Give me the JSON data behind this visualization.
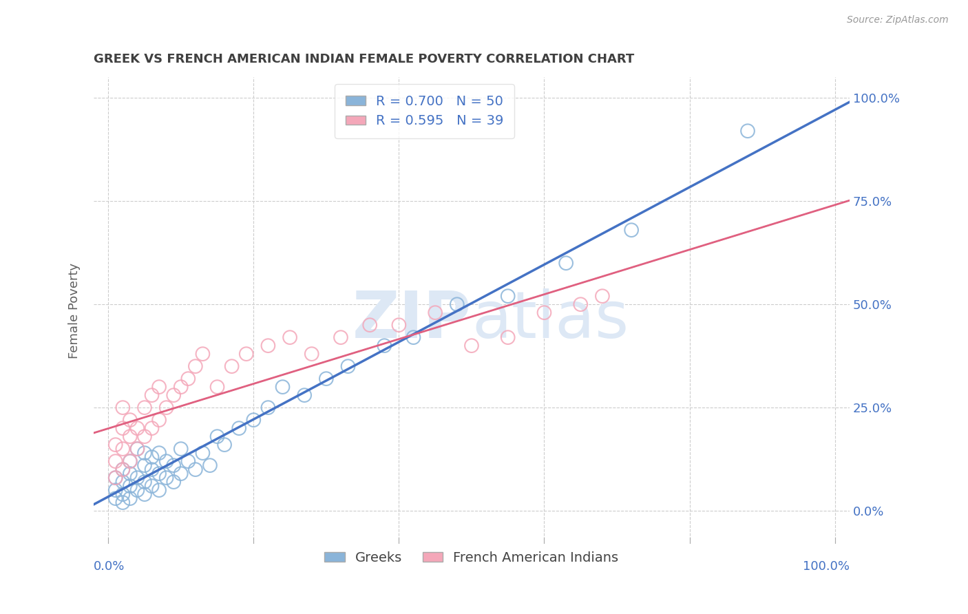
{
  "title": "GREEK VS FRENCH AMERICAN INDIAN FEMALE POVERTY CORRELATION CHART",
  "source": "Source: ZipAtlas.com",
  "R1": 0.7,
  "N1": 50,
  "R2": 0.595,
  "N2": 39,
  "color_blue": "#8ab4d9",
  "color_pink": "#f4a7b9",
  "color_line_blue": "#4472c4",
  "color_line_pink": "#e06080",
  "color_line_pink_dash": "#e8a0b0",
  "watermark": "ZIPatlas",
  "watermark_color": "#dde8f5",
  "background_color": "#ffffff",
  "grid_color": "#cccccc",
  "title_color": "#404040",
  "axis_label_color": "#4472c4",
  "ylabel": "Female Poverty",
  "ylabel_color": "#606060",
  "legend1_text": "R = 0.700   N = 50",
  "legend2_text": "R = 0.595   N = 39",
  "bottom_legend1": "Greeks",
  "bottom_legend2": "French American Indians",
  "xmin": 0,
  "xmax": 100,
  "ymin": -8,
  "ymax": 105,
  "yticks": [
    0,
    25,
    50,
    75,
    100
  ],
  "xticks": [
    0,
    20,
    40,
    60,
    80,
    100
  ],
  "blue_x": [
    1,
    1,
    1,
    2,
    2,
    2,
    2,
    3,
    3,
    3,
    3,
    4,
    4,
    4,
    5,
    5,
    5,
    5,
    6,
    6,
    6,
    7,
    7,
    7,
    8,
    8,
    9,
    9,
    10,
    10,
    11,
    12,
    13,
    14,
    15,
    16,
    18,
    20,
    22,
    24,
    27,
    30,
    33,
    38,
    42,
    48,
    55,
    63,
    72,
    88
  ],
  "blue_y": [
    3,
    5,
    8,
    2,
    4,
    7,
    10,
    3,
    6,
    9,
    12,
    5,
    8,
    15,
    4,
    7,
    11,
    14,
    6,
    10,
    13,
    5,
    9,
    14,
    8,
    12,
    7,
    11,
    9,
    15,
    12,
    10,
    14,
    11,
    18,
    16,
    20,
    22,
    25,
    30,
    28,
    32,
    35,
    40,
    42,
    50,
    52,
    60,
    68,
    92
  ],
  "pink_x": [
    1,
    1,
    1,
    2,
    2,
    2,
    2,
    3,
    3,
    3,
    4,
    4,
    5,
    5,
    6,
    6,
    7,
    7,
    8,
    9,
    10,
    11,
    12,
    13,
    15,
    17,
    19,
    22,
    25,
    28,
    32,
    36,
    40,
    45,
    50,
    55,
    60,
    65,
    68
  ],
  "pink_y": [
    8,
    12,
    16,
    10,
    15,
    20,
    25,
    12,
    18,
    22,
    15,
    20,
    18,
    25,
    20,
    28,
    22,
    30,
    25,
    28,
    30,
    32,
    35,
    38,
    30,
    35,
    38,
    40,
    42,
    38,
    42,
    45,
    45,
    48,
    40,
    42,
    48,
    50,
    52
  ]
}
